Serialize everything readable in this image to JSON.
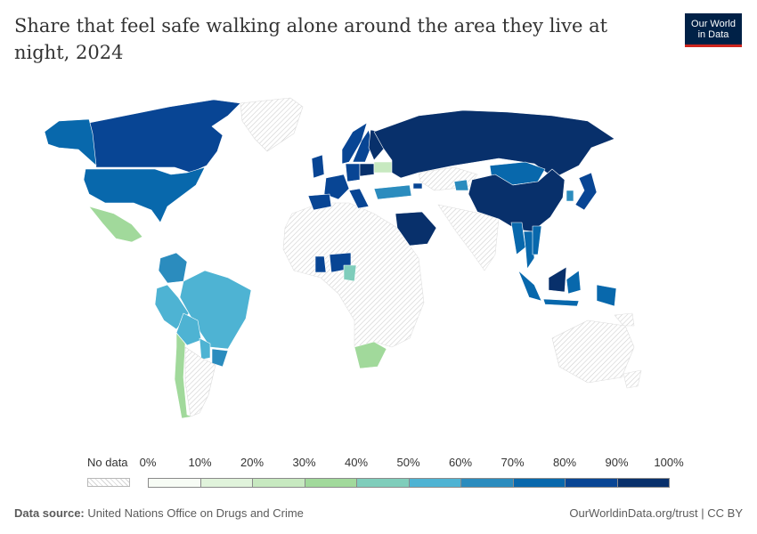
{
  "title": "Share that feel safe walking alone around the area they live at night, 2024",
  "logo": {
    "line1": "Our World",
    "line2": "in Data"
  },
  "legend": {
    "no_data_label": "No data",
    "ticks": [
      "0%",
      "10%",
      "20%",
      "30%",
      "40%",
      "50%",
      "60%",
      "70%",
      "80%",
      "90%",
      "100%"
    ],
    "colors": [
      "#f7fcf5",
      "#e0f3db",
      "#c7e9c0",
      "#a1d99b",
      "#7fcdbb",
      "#4eb3d3",
      "#2b8cbe",
      "#0868ac",
      "#084594",
      "#08306b"
    ]
  },
  "footer": {
    "source_label": "Data source:",
    "source_text": "United Nations Office on Drugs and Crime",
    "link_text": "OurWorldinData.org/trust",
    "separator": "|",
    "license": "CC BY"
  },
  "map_data": {
    "type": "choropleth",
    "metric": "share feeling safe",
    "unit": "%",
    "year": 2024,
    "no_data_color": "#d6d6d6",
    "regions": [
      {
        "name": "Canada",
        "color_bin": 8
      },
      {
        "name": "Alaska (United States)",
        "color_bin": 7
      },
      {
        "name": "United States",
        "color_bin": 7
      },
      {
        "name": "Mexico",
        "color_bin": 3
      },
      {
        "name": "Colombia",
        "color_bin": 6
      },
      {
        "name": "Brazil",
        "color_bin": 5
      },
      {
        "name": "Peru",
        "color_bin": 5
      },
      {
        "name": "Bolivia",
        "color_bin": 5
      },
      {
        "name": "Paraguay",
        "color_bin": 5
      },
      {
        "name": "Uruguay",
        "color_bin": 6
      },
      {
        "name": "Chile",
        "color_bin": 3
      },
      {
        "name": "Argentina",
        "color_bin": null
      },
      {
        "name": "Greenland",
        "color_bin": null
      },
      {
        "name": "Norway",
        "color_bin": 8
      },
      {
        "name": "Sweden",
        "color_bin": 8
      },
      {
        "name": "Finland",
        "color_bin": 9
      },
      {
        "name": "United Kingdom",
        "color_bin": 8
      },
      {
        "name": "France",
        "color_bin": 8
      },
      {
        "name": "Spain",
        "color_bin": 8
      },
      {
        "name": "Germany",
        "color_bin": 8
      },
      {
        "name": "Italy",
        "color_bin": 8
      },
      {
        "name": "Poland",
        "color_bin": 9
      },
      {
        "name": "Ukraine",
        "color_bin": 2
      },
      {
        "name": "Russia",
        "color_bin": 9
      },
      {
        "name": "Turkey",
        "color_bin": 6
      },
      {
        "name": "Georgia",
        "color_bin": 8
      },
      {
        "name": "Saudi Arabia",
        "color_bin": 9
      },
      {
        "name": "Kazakhstan",
        "color_bin": null
      },
      {
        "name": "Uzbekistan",
        "color_bin": 6
      },
      {
        "name": "Mongolia",
        "color_bin": 7
      },
      {
        "name": "China",
        "color_bin": 9
      },
      {
        "name": "South Korea",
        "color_bin": 6
      },
      {
        "name": "Japan",
        "color_bin": 8
      },
      {
        "name": "Myanmar",
        "color_bin": 7
      },
      {
        "name": "Thailand",
        "color_bin": 7
      },
      {
        "name": "Vietnam",
        "color_bin": 7
      },
      {
        "name": "Malaysia",
        "color_bin": 9
      },
      {
        "name": "Indonesia",
        "color_bin": 7
      },
      {
        "name": "Ghana",
        "color_bin": 8
      },
      {
        "name": "Nigeria",
        "color_bin": 8
      },
      {
        "name": "Cameroon",
        "color_bin": 4
      },
      {
        "name": "South Africa",
        "color_bin": 3
      },
      {
        "name": "Australia",
        "color_bin": null
      }
    ]
  }
}
